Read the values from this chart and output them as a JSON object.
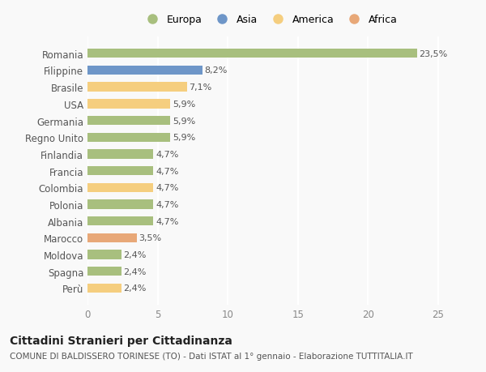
{
  "countries": [
    "Romania",
    "Filippine",
    "Brasile",
    "USA",
    "Germania",
    "Regno Unito",
    "Finlandia",
    "Francia",
    "Colombia",
    "Polonia",
    "Albania",
    "Marocco",
    "Moldova",
    "Spagna",
    "Perù"
  ],
  "values": [
    23.5,
    8.2,
    7.1,
    5.9,
    5.9,
    5.9,
    4.7,
    4.7,
    4.7,
    4.7,
    4.7,
    3.5,
    2.4,
    2.4,
    2.4
  ],
  "labels": [
    "23,5%",
    "8,2%",
    "7,1%",
    "5,9%",
    "5,9%",
    "5,9%",
    "4,7%",
    "4,7%",
    "4,7%",
    "4,7%",
    "4,7%",
    "3,5%",
    "2,4%",
    "2,4%",
    "2,4%"
  ],
  "continents": [
    "Europa",
    "Asia",
    "America",
    "America",
    "Europa",
    "Europa",
    "Europa",
    "Europa",
    "America",
    "Europa",
    "Europa",
    "Africa",
    "Europa",
    "Europa",
    "America"
  ],
  "colors": {
    "Europa": "#a8bf7e",
    "Asia": "#6e96c8",
    "America": "#f5ce7f",
    "Africa": "#e8a878"
  },
  "legend_order": [
    "Europa",
    "Asia",
    "America",
    "Africa"
  ],
  "xlim": [
    0,
    26
  ],
  "xticks": [
    0,
    5,
    10,
    15,
    20,
    25
  ],
  "title": "Cittadini Stranieri per Cittadinanza",
  "subtitle": "COMUNE DI BALDISSERO TORINESE (TO) - Dati ISTAT al 1° gennaio - Elaborazione TUTTITALIA.IT",
  "background_color": "#f9f9f9",
  "bar_height": 0.55,
  "label_fontsize": 8,
  "title_fontsize": 10,
  "subtitle_fontsize": 7.5,
  "legend_fontsize": 9,
  "ytick_fontsize": 8.5,
  "xtick_fontsize": 8.5
}
